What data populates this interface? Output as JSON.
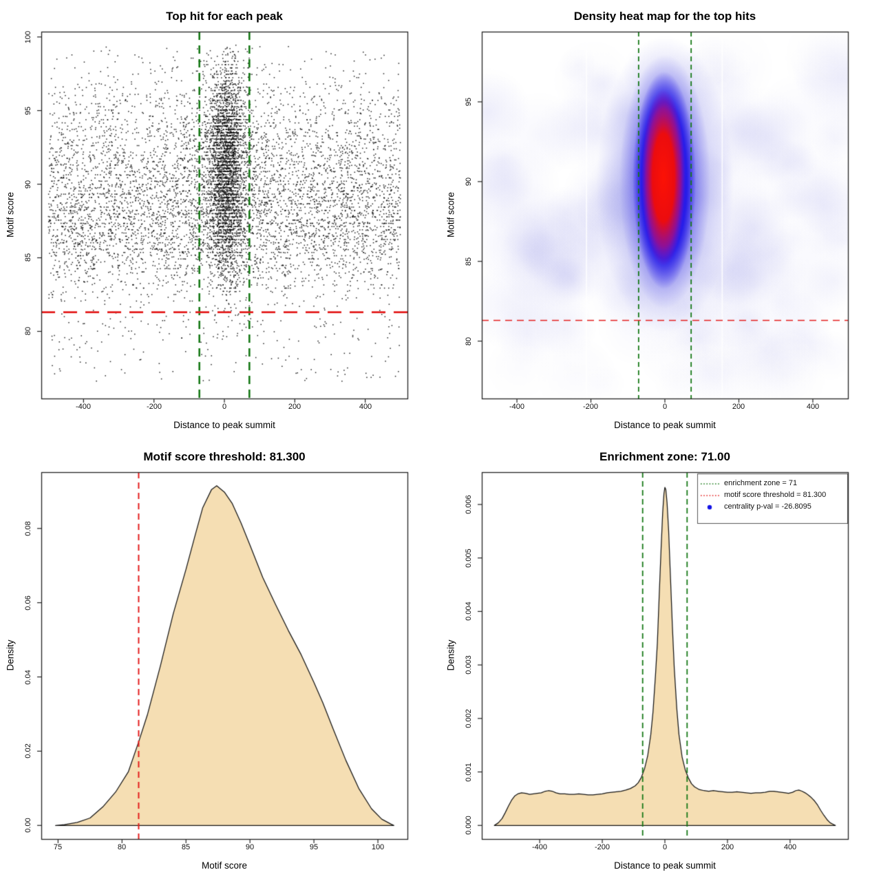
{
  "colors": {
    "background": "#FFFFFF",
    "threshold_red": "#E41C1C",
    "zone_green": "#157815",
    "density_fill": "#F5DEB3",
    "curve_black": "#141414",
    "point_black": "#0A0A0A",
    "legend_point_blue": "#1414E6",
    "heat_wash": "#9696E8",
    "heat_blue": "#1C10E8",
    "heat_red": "#FC1206",
    "frame_gray": "#222222"
  },
  "chart_data": [
    {
      "type": "scatter",
      "title": "Top hit for each peak",
      "xlabel": "Distance to peak summit",
      "ylabel": "Motif score",
      "xlim": [
        -520,
        520
      ],
      "ylim": [
        75.44,
        100.36
      ],
      "xticks": [
        -400,
        -200,
        0,
        200,
        400
      ],
      "xtick_labels": [
        "-400",
        "-200",
        "0",
        "200",
        "400"
      ],
      "yticks": [
        80,
        85,
        90,
        95,
        100
      ],
      "ytick_labels": [
        "80",
        "85",
        "90",
        "95",
        "100"
      ],
      "enrichment_zone_x": [
        -71,
        71
      ],
      "threshold_y": 81.3,
      "n_points": 8950,
      "cluster": {
        "x_mean": 5,
        "x_sd": 28,
        "fraction": 0.36
      },
      "background_y_mixture": [
        {
          "mean": 87.2,
          "sd": 2.6,
          "w": 0.58
        },
        {
          "mean": 91.8,
          "sd": 3.4,
          "w": 0.42
        }
      ],
      "cluster_y_mixture": [
        {
          "mean": 88.2,
          "sd": 2.9,
          "w": 0.32
        },
        {
          "mean": 92.4,
          "sd": 3.1,
          "w": 0.68
        }
      ]
    },
    {
      "type": "heatmap",
      "title": "Density heat map for the top hits",
      "xlabel": "Distance to peak summit",
      "ylabel": "Motif score",
      "xlim": [
        -495,
        495
      ],
      "ylim": [
        76.4,
        99.4
      ],
      "xticks": [
        -400,
        -200,
        0,
        200,
        400
      ],
      "xtick_labels": [
        "-400",
        "-200",
        "0",
        "200",
        "400"
      ],
      "yticks": [
        80,
        85,
        90,
        95
      ],
      "ytick_labels": [
        "80",
        "85",
        "90",
        "95"
      ],
      "enrichment_zone_x": [
        -71,
        71
      ],
      "threshold_y": 81.3,
      "hotspot": {
        "x_center": -2,
        "y_center": 90.3,
        "y_extent": [
          83,
          97.5
        ],
        "x_extent": [
          -62,
          62
        ]
      },
      "white_gridlines_x": [
        -212,
        155
      ]
    },
    {
      "type": "area",
      "title": "Motif score threshold: 81.300",
      "xlabel": "Motif score",
      "ylabel": "Density",
      "xlim": [
        73.69,
        102.31
      ],
      "ylim": [
        -0.00366,
        0.09516
      ],
      "xticks": [
        75,
        80,
        85,
        90,
        95,
        100
      ],
      "xtick_labels": [
        "75",
        "80",
        "85",
        "90",
        "95",
        "100"
      ],
      "yticks": [
        0,
        0.02,
        0.04,
        0.06,
        0.08
      ],
      "ytick_labels": [
        "0.00",
        "0.02",
        "0.04",
        "0.06",
        "0.08"
      ],
      "threshold_x": 81.3,
      "curve": [
        [
          74.8,
          0
        ],
        [
          75.5,
          0.0002
        ],
        [
          76.5,
          0.0008
        ],
        [
          77.5,
          0.002
        ],
        [
          78.5,
          0.005
        ],
        [
          79.5,
          0.009
        ],
        [
          80.5,
          0.0145
        ],
        [
          81.3,
          0.0225
        ],
        [
          82,
          0.03
        ],
        [
          83,
          0.043
        ],
        [
          84,
          0.057
        ],
        [
          85,
          0.069
        ],
        [
          85.7,
          0.078
        ],
        [
          86.3,
          0.0855
        ],
        [
          87,
          0.0905
        ],
        [
          87.4,
          0.0915
        ],
        [
          88,
          0.0898
        ],
        [
          88.6,
          0.0868
        ],
        [
          89.3,
          0.0815
        ],
        [
          90,
          0.0755
        ],
        [
          91,
          0.0668
        ],
        [
          92,
          0.0595
        ],
        [
          93,
          0.0525
        ],
        [
          94,
          0.046
        ],
        [
          95,
          0.0385
        ],
        [
          95.7,
          0.033
        ],
        [
          96.5,
          0.026
        ],
        [
          97.5,
          0.0175
        ],
        [
          98.5,
          0.01
        ],
        [
          99.5,
          0.0045
        ],
        [
          100.3,
          0.0017
        ],
        [
          101,
          0.0004
        ],
        [
          101.25,
          0
        ]
      ]
    },
    {
      "type": "area",
      "title": "Enrichment zone: 71.00",
      "xlabel": "Distance to peak summit",
      "ylabel": "Density",
      "xlim": [
        -585,
        585
      ],
      "ylim": [
        -0.000254,
        0.006604
      ],
      "xticks": [
        -400,
        -200,
        0,
        200,
        400
      ],
      "xtick_labels": [
        "-400",
        "-200",
        "0",
        "200",
        "400"
      ],
      "yticks": [
        0,
        0.001,
        0.002,
        0.003,
        0.004,
        0.005,
        0.006
      ],
      "ytick_labels": [
        "0.000",
        "0.001",
        "0.002",
        "0.003",
        "0.004",
        "0.005",
        "0.006"
      ],
      "zone_x": [
        -71,
        71
      ],
      "curve": [
        [
          -545,
          0
        ],
        [
          -532,
          5e-05
        ],
        [
          -520,
          0.00013
        ],
        [
          -510,
          0.00024
        ],
        [
          -500,
          0.00036
        ],
        [
          -490,
          0.00047
        ],
        [
          -480,
          0.00055
        ],
        [
          -470,
          0.00059
        ],
        [
          -458,
          0.00061
        ],
        [
          -445,
          0.0006
        ],
        [
          -432,
          0.00058
        ],
        [
          -420,
          0.00059
        ],
        [
          -408,
          0.0006
        ],
        [
          -395,
          0.00061
        ],
        [
          -382,
          0.00064
        ],
        [
          -372,
          0.00065
        ],
        [
          -360,
          0.00064
        ],
        [
          -348,
          0.00061
        ],
        [
          -335,
          0.00059
        ],
        [
          -320,
          0.00059
        ],
        [
          -305,
          0.00058
        ],
        [
          -290,
          0.00058
        ],
        [
          -275,
          0.00059
        ],
        [
          -260,
          0.00058
        ],
        [
          -245,
          0.00057
        ],
        [
          -230,
          0.00057
        ],
        [
          -215,
          0.00058
        ],
        [
          -200,
          0.00059
        ],
        [
          -185,
          0.00061
        ],
        [
          -170,
          0.00062
        ],
        [
          -155,
          0.00063
        ],
        [
          -140,
          0.00064
        ],
        [
          -125,
          0.00066
        ],
        [
          -110,
          0.00069
        ],
        [
          -95,
          0.00074
        ],
        [
          -85,
          0.0008
        ],
        [
          -75,
          0.0009
        ],
        [
          -65,
          0.00106
        ],
        [
          -55,
          0.0013
        ],
        [
          -45,
          0.0017
        ],
        [
          -38,
          0.00212
        ],
        [
          -30,
          0.00281
        ],
        [
          -24,
          0.00341
        ],
        [
          -18,
          0.00432
        ],
        [
          -12,
          0.00519
        ],
        [
          -7,
          0.00585
        ],
        [
          -3,
          0.0062
        ],
        [
          0,
          0.00632
        ],
        [
          3,
          0.00628
        ],
        [
          7,
          0.00603
        ],
        [
          12,
          0.00551
        ],
        [
          18,
          0.00462
        ],
        [
          24,
          0.00372
        ],
        [
          30,
          0.00294
        ],
        [
          38,
          0.00219
        ],
        [
          45,
          0.0017
        ],
        [
          55,
          0.00128
        ],
        [
          65,
          0.00104
        ],
        [
          75,
          0.00089
        ],
        [
          85,
          0.00078
        ],
        [
          95,
          0.00072
        ],
        [
          110,
          0.00067
        ],
        [
          125,
          0.00065
        ],
        [
          140,
          0.00064
        ],
        [
          155,
          0.00065
        ],
        [
          170,
          0.00064
        ],
        [
          185,
          0.00063
        ],
        [
          200,
          0.00062
        ],
        [
          215,
          0.00062
        ],
        [
          230,
          0.00063
        ],
        [
          245,
          0.00062
        ],
        [
          260,
          0.00061
        ],
        [
          275,
          0.0006
        ],
        [
          290,
          0.00061
        ],
        [
          305,
          0.00061
        ],
        [
          320,
          0.00062
        ],
        [
          335,
          0.00064
        ],
        [
          348,
          0.00064
        ],
        [
          360,
          0.00063
        ],
        [
          372,
          0.00062
        ],
        [
          385,
          0.00061
        ],
        [
          395,
          0.0006
        ],
        [
          408,
          0.00062
        ],
        [
          418,
          0.00065
        ],
        [
          428,
          0.00066
        ],
        [
          438,
          0.00064
        ],
        [
          448,
          0.00061
        ],
        [
          458,
          0.00057
        ],
        [
          468,
          0.00052
        ],
        [
          478,
          0.00046
        ],
        [
          488,
          0.00038
        ],
        [
          498,
          0.00028
        ],
        [
          508,
          0.00019
        ],
        [
          518,
          0.00011
        ],
        [
          528,
          5e-05
        ],
        [
          538,
          2e-05
        ],
        [
          545,
          0
        ]
      ],
      "legend": {
        "entries": [
          {
            "label": "enrichment zone = 71",
            "type": "dotted-line",
            "color": "#157815"
          },
          {
            "label": "motif score threshold = 81.300",
            "type": "dotted-line",
            "color": "#E41C1C"
          },
          {
            "label": "centrality p-val = -26.8095",
            "type": "point",
            "color": "#1414E6"
          }
        ]
      }
    }
  ]
}
